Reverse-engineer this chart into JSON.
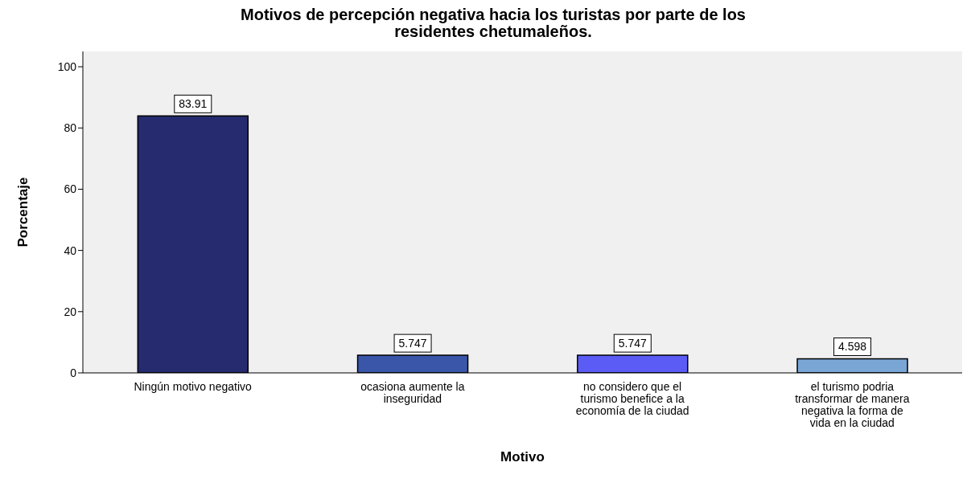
{
  "chart_data": {
    "type": "bar",
    "title": "Motivos de percepción negativa hacia los turistas por parte de los residentes chetumaleños.",
    "xlabel": "Motivo",
    "ylabel": "Porcentaje",
    "categories": [
      "Ningún motivo negativo",
      "ocasiona aumente la inseguridad",
      "no considero que el turismo benefice a la economía de la ciudad",
      "el turismo podria transformar de manera negativa la forma de vida en la ciudad"
    ],
    "values": [
      83.91,
      5.747,
      5.747,
      4.598
    ],
    "colors": [
      "#262a6e",
      "#3a56a8",
      "#5a5cf5",
      "#7aa6d6"
    ],
    "ylim": [
      0,
      105
    ],
    "yticks": [
      0,
      20,
      40,
      60,
      80,
      100
    ],
    "data_labels": true
  }
}
